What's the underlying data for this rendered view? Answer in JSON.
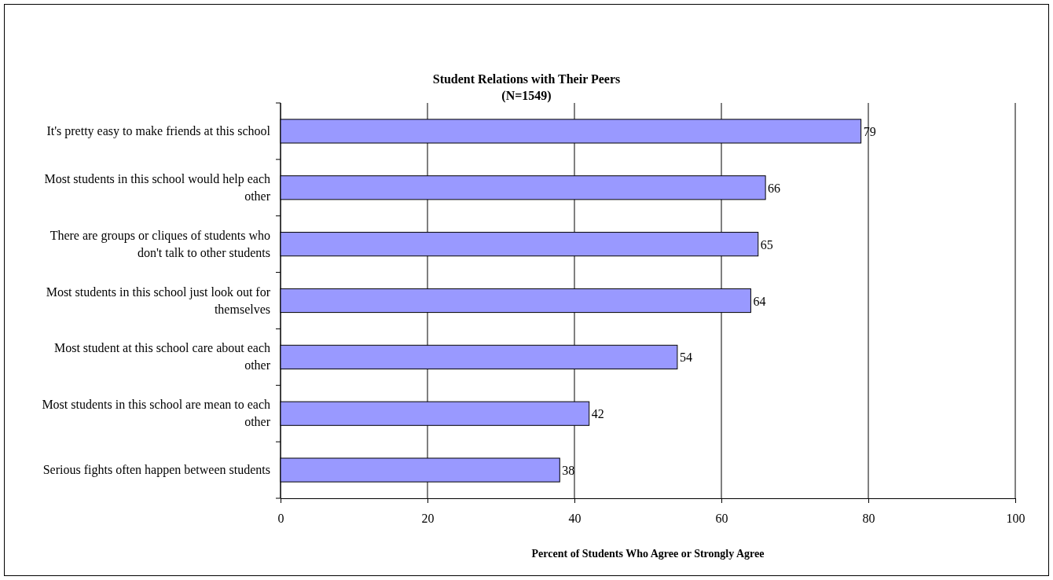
{
  "chart_data": {
    "type": "bar",
    "orientation": "horizontal",
    "title": "Student Relations with Their Peers",
    "subtitle": "(N=1549)",
    "xlabel": "Percent of Students Who Agree or Strongly Agree",
    "categories": [
      "It's pretty easy to make friends at this school",
      "Most students in this school would help each other",
      "There are groups or cliques of students who don't talk to other students",
      "Most students in this school just look out for themselves",
      "Most student at this school care about each other",
      "Most students in this school are mean to each other",
      "Serious fights often happen between students"
    ],
    "values": [
      79,
      66,
      65,
      64,
      54,
      42,
      38
    ],
    "color": "#9999ff",
    "xlim": [
      0,
      100
    ],
    "xticks": [
      0,
      20,
      40,
      60,
      80,
      100
    ],
    "grid": "x",
    "data_labels": true
  }
}
